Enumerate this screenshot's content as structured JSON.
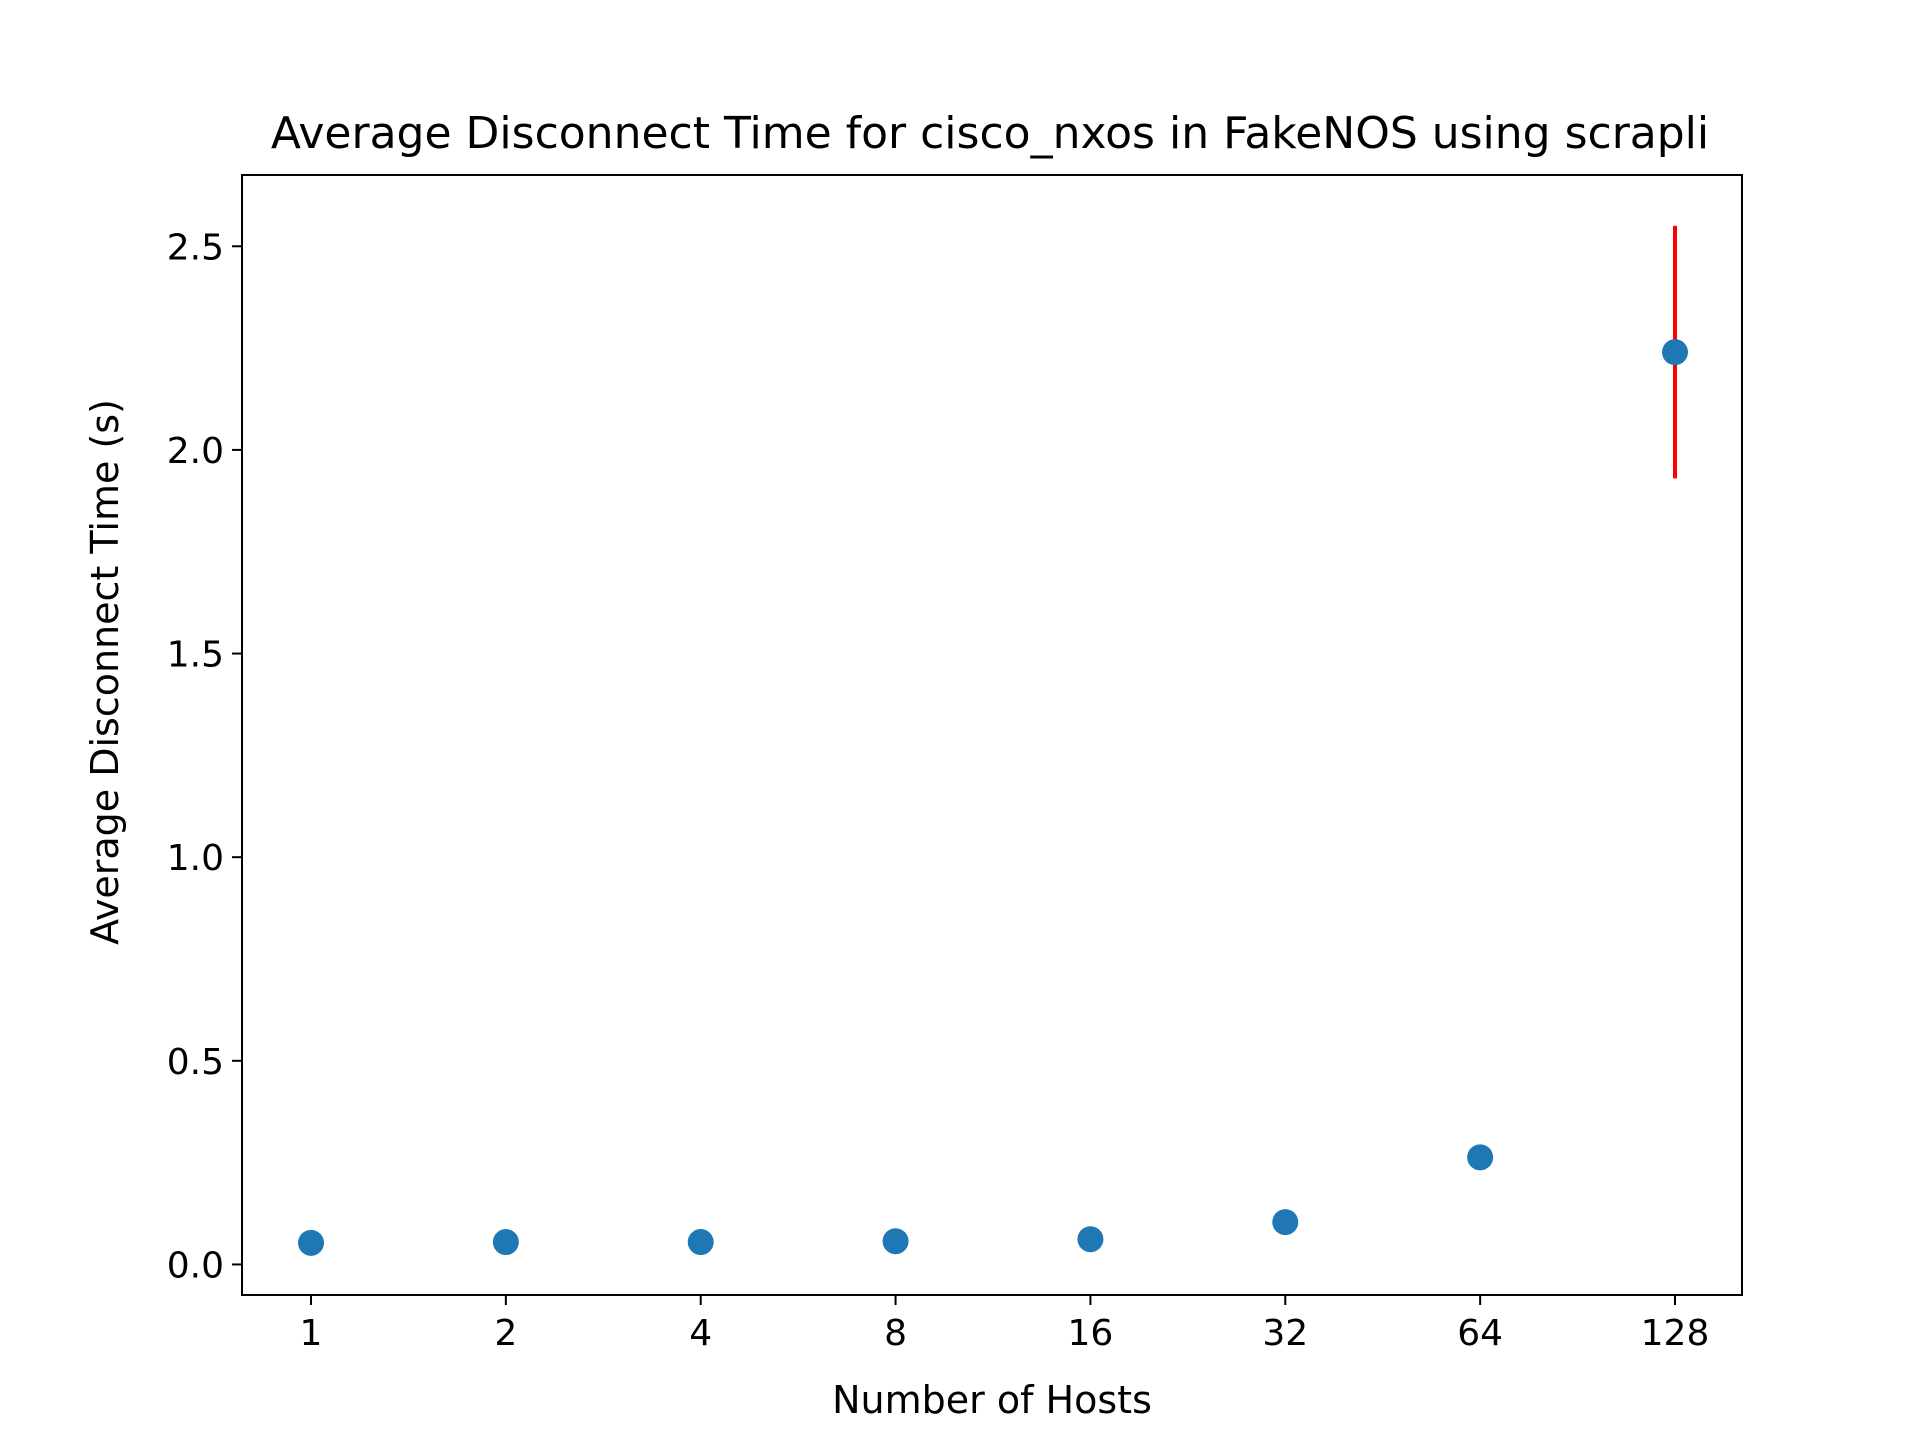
{
  "chart_data": {
    "type": "scatter",
    "title": "Average Disconnect Time for cisco_nxos in FakeNOS using scrapli",
    "xlabel": "Number of Hosts",
    "ylabel": "Average Disconnect Time (s)",
    "x_scale": "log2",
    "x": [
      1,
      2,
      4,
      8,
      16,
      32,
      64,
      128
    ],
    "x_tick_labels": [
      "1",
      "2",
      "4",
      "8",
      "16",
      "32",
      "64",
      "128"
    ],
    "y": [
      0.053,
      0.055,
      0.055,
      0.057,
      0.062,
      0.104,
      0.263,
      2.24
    ],
    "y_err": [
      0,
      0,
      0,
      0,
      0,
      0,
      0,
      0.31
    ],
    "y_ticks": [
      0.0,
      0.5,
      1.0,
      1.5,
      2.0,
      2.5
    ],
    "y_tick_labels": [
      "0.0",
      "0.5",
      "1.0",
      "1.5",
      "2.0",
      "2.5"
    ],
    "ylim": [
      -0.075,
      2.675
    ],
    "grid": false,
    "colors": {
      "marker": "#1f77b4",
      "errorbar": "#ff0000"
    }
  }
}
